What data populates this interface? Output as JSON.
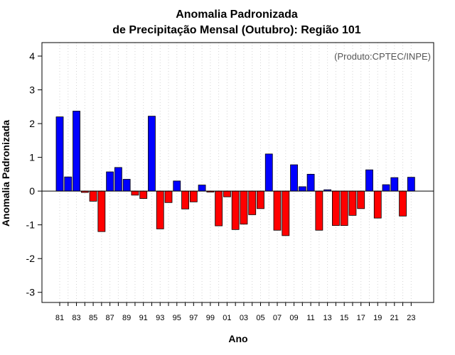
{
  "chart_data": {
    "type": "bar",
    "title_line1": "Anomalia Padronizada",
    "title_line2": "de Precipitação Mensal (Outubro): Região 101",
    "xlabel": "Ano",
    "ylabel": "Anomalia Padronizada",
    "annotation": "(Produto:CPTEC/INPE)",
    "ylim": [
      -3.3,
      4.4
    ],
    "yticks": [
      -3,
      -2,
      -1,
      0,
      1,
      2,
      3,
      4
    ],
    "grid": "vertical-dotted",
    "positive_color": "#0000ff",
    "negative_color": "#ff0000",
    "categories": [
      "81",
      "82",
      "83",
      "84",
      "85",
      "86",
      "87",
      "88",
      "89",
      "90",
      "91",
      "92",
      "93",
      "94",
      "95",
      "96",
      "97",
      "98",
      "99",
      "00",
      "01",
      "02",
      "03",
      "04",
      "05",
      "06",
      "07",
      "08",
      "09",
      "10",
      "11",
      "12",
      "13",
      "14",
      "15",
      "16",
      "17",
      "18",
      "19",
      "20",
      "21",
      "22",
      "23"
    ],
    "values": [
      2.2,
      0.42,
      2.37,
      -0.04,
      -0.3,
      -1.2,
      0.57,
      0.7,
      0.35,
      -0.12,
      -0.22,
      2.22,
      -1.12,
      -0.34,
      0.3,
      -0.53,
      -0.32,
      0.18,
      -0.03,
      -1.03,
      -0.17,
      -1.14,
      -0.98,
      -0.7,
      -0.52,
      1.1,
      -1.16,
      -1.32,
      0.78,
      0.13,
      0.5,
      -1.16,
      0.04,
      -1.02,
      -1.02,
      -0.72,
      -0.52,
      0.63,
      -0.8,
      0.19,
      0.4,
      -0.74,
      0.41
    ],
    "xtick_labels": [
      "81",
      "83",
      "85",
      "87",
      "89",
      "91",
      "93",
      "95",
      "97",
      "99",
      "01",
      "03",
      "05",
      "07",
      "09",
      "11",
      "13",
      "15",
      "17",
      "19",
      "21",
      "23"
    ]
  }
}
